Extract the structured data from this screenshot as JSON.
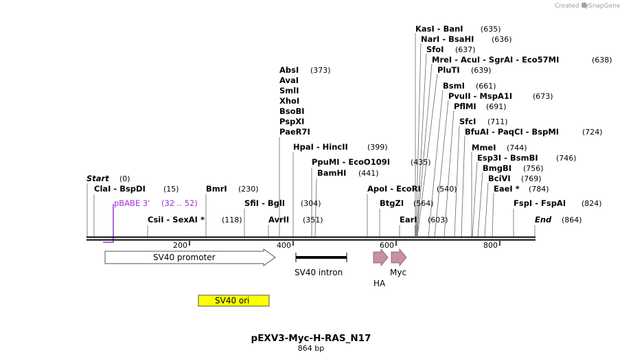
{
  "branding": {
    "created_by": "Created by",
    "brand": "SnapGene"
  },
  "map": {
    "title": "pEXV3-Myc-H-RAS_N17",
    "length_label": "864 bp",
    "start_label": "Start",
    "start_pos": "(0)",
    "end_label": "End",
    "end_pos": "(864)",
    "ticks": [
      "200",
      "400",
      "600",
      "800"
    ]
  },
  "sites": [
    {
      "label": "ClaI  -  BspDI",
      "pos": "(15)"
    },
    {
      "label": "CsiI  -  SexAI *",
      "pos": "(118)"
    },
    {
      "label": "BmrI",
      "pos": "(230)"
    },
    {
      "label": "SfiI  -  BglI",
      "pos": "(304)"
    },
    {
      "label": "AvrII",
      "pos": "(351)"
    },
    {
      "label": "AbsI",
      "pos": "(373)"
    },
    {
      "label": "AvaI",
      "pos": ""
    },
    {
      "label": "SmlI",
      "pos": ""
    },
    {
      "label": "XhoI",
      "pos": ""
    },
    {
      "label": "BsoBI",
      "pos": ""
    },
    {
      "label": "PspXI",
      "pos": ""
    },
    {
      "label": "PaeR7I",
      "pos": ""
    },
    {
      "label": "HpaI  -  HincII",
      "pos": "(399)"
    },
    {
      "label": "PpuMI  -  EcoO109I",
      "pos": "(435)"
    },
    {
      "label": "BamHI",
      "pos": "(441)"
    },
    {
      "label": "ApoI  -  EcoRI",
      "pos": "(540)"
    },
    {
      "label": "BtgZI",
      "pos": "(564)"
    },
    {
      "label": "EarI",
      "pos": "(603)"
    },
    {
      "label": "KasI  -  BanI",
      "pos": "(635)"
    },
    {
      "label": "NarI  -  BsaHI",
      "pos": "(636)"
    },
    {
      "label": "SfoI",
      "pos": "(637)"
    },
    {
      "label": "MreI  -  AcuI  -  SgrAI  -  Eco57MI",
      "pos": "(638)"
    },
    {
      "label": "PluTI",
      "pos": "(639)"
    },
    {
      "label": "BsmI",
      "pos": "(661)"
    },
    {
      "label": "PvuII  -  MspA1I",
      "pos": "(673)"
    },
    {
      "label": "PflMI",
      "pos": "(691)"
    },
    {
      "label": "SfcI",
      "pos": "(711)"
    },
    {
      "label": "BfuAI  -  PaqCI  -  BspMI",
      "pos": "(724)"
    },
    {
      "label": "MmeI",
      "pos": "(744)"
    },
    {
      "label": "Esp3I  -  BsmBI",
      "pos": "(746)"
    },
    {
      "label": "BmgBI",
      "pos": "(756)"
    },
    {
      "label": "BciVI",
      "pos": "(769)"
    },
    {
      "label": "EaeI *",
      "pos": "(784)"
    },
    {
      "label": "FspI  -  FspAI",
      "pos": "(824)"
    }
  ],
  "primer": {
    "label": "pBABE 3'",
    "range": "(32 .. 52)"
  },
  "features": [
    {
      "label": "SV40 promoter"
    },
    {
      "label": "SV40 intron"
    },
    {
      "label": "HA"
    },
    {
      "label": "Myc"
    },
    {
      "label": "SV40 ori"
    }
  ],
  "colors": {
    "primer": "#9b30d9",
    "tag_arrow": "#c8919e",
    "ori": "#ffff00",
    "backbone": "#000000"
  }
}
